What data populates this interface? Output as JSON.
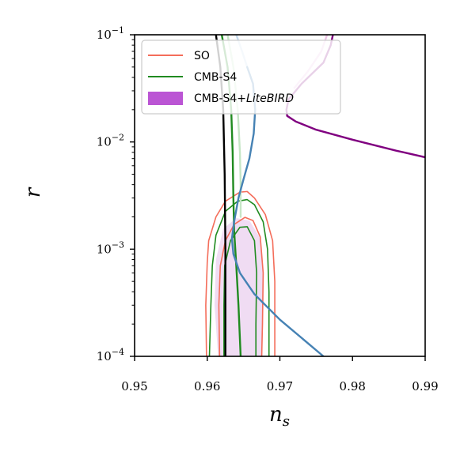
{
  "chart_data": {
    "type": "line",
    "xlabel": "n",
    "xlabel_sub": "s",
    "ylabel": "r",
    "xlim": [
      0.95,
      0.99
    ],
    "ylim": [
      0.0001,
      0.1
    ],
    "yscale": "log",
    "grid": false,
    "legend_position": "top-left",
    "x_ticks": [
      {
        "value": 0.95,
        "label": "0.95"
      },
      {
        "value": 0.96,
        "label": "0.96"
      },
      {
        "value": 0.97,
        "label": "0.97"
      },
      {
        "value": 0.98,
        "label": "0.98"
      },
      {
        "value": 0.99,
        "label": "0.99"
      }
    ],
    "y_ticks": [
      {
        "value": 0.1,
        "base": "10",
        "exp": "−1"
      },
      {
        "value": 0.01,
        "base": "10",
        "exp": "−2"
      },
      {
        "value": 0.001,
        "base": "10",
        "exp": "−3"
      },
      {
        "value": 0.0001,
        "base": "10",
        "exp": "−4"
      }
    ],
    "legend": [
      {
        "label": "SO",
        "color": "#f46d5a",
        "kind": "line"
      },
      {
        "label": "CMB-S4",
        "color": "#208b20",
        "kind": "line"
      },
      {
        "label_main": "CMB-S4+",
        "label_italic": "LiteBIRD",
        "color": "#bb55d4",
        "kind": "patch"
      }
    ],
    "series": [
      {
        "key": "litebird-contour-68",
        "kind": "filled-contour",
        "color": "#dfaeea",
        "points": [
          [
            0.9638,
            0.0001
          ],
          [
            0.9636,
            0.00025
          ],
          [
            0.9637,
            0.0006
          ],
          [
            0.9642,
            0.001
          ],
          [
            0.965,
            0.00122
          ],
          [
            0.9658,
            0.0011
          ],
          [
            0.9662,
            0.0007
          ],
          [
            0.9662,
            0.0003
          ],
          [
            0.966,
            0.0001
          ]
        ]
      },
      {
        "key": "litebird-contour-95",
        "kind": "filled-contour",
        "color": "#f0dcf3",
        "points": [
          [
            0.9615,
            0.0001
          ],
          [
            0.961,
            0.0003
          ],
          [
            0.9612,
            0.0008
          ],
          [
            0.9622,
            0.00155
          ],
          [
            0.964,
            0.00195
          ],
          [
            0.9658,
            0.00185
          ],
          [
            0.9672,
            0.0013
          ],
          [
            0.9678,
            0.0006
          ],
          [
            0.9677,
            0.0002
          ],
          [
            0.9675,
            0.0001
          ]
        ]
      },
      {
        "key": "so-contour-95",
        "color": "#f46d5a",
        "points": [
          [
            0.9599,
            0.0001
          ],
          [
            0.9598,
            0.0003
          ],
          [
            0.96,
            0.00075
          ],
          [
            0.9602,
            0.0012
          ],
          [
            0.9612,
            0.002
          ],
          [
            0.9625,
            0.0028
          ],
          [
            0.9645,
            0.0034
          ],
          [
            0.9655,
            0.00345
          ],
          [
            0.9665,
            0.003
          ],
          [
            0.968,
            0.0021
          ],
          [
            0.969,
            0.0012
          ],
          [
            0.9693,
            0.0005
          ],
          [
            0.9693,
            0.0002
          ],
          [
            0.9693,
            0.0001
          ]
        ]
      },
      {
        "key": "so-contour-68",
        "color": "#f46d5a",
        "points": [
          [
            0.9617,
            0.0001
          ],
          [
            0.9616,
            0.0003
          ],
          [
            0.9618,
            0.0007
          ],
          [
            0.9625,
            0.0012
          ],
          [
            0.9637,
            0.0017
          ],
          [
            0.9652,
            0.00198
          ],
          [
            0.9663,
            0.00185
          ],
          [
            0.9673,
            0.0013
          ],
          [
            0.9677,
            0.0006
          ],
          [
            0.9676,
            0.0002
          ],
          [
            0.9675,
            0.0001
          ]
        ]
      },
      {
        "key": "cmbs4-contour-95",
        "color": "#208b20",
        "points": [
          [
            0.9603,
            0.0001
          ],
          [
            0.9605,
            0.0003
          ],
          [
            0.9607,
            0.0007
          ],
          [
            0.9612,
            0.00135
          ],
          [
            0.9625,
            0.00225
          ],
          [
            0.9642,
            0.0028
          ],
          [
            0.9655,
            0.0029
          ],
          [
            0.9665,
            0.0026
          ],
          [
            0.9677,
            0.0018
          ],
          [
            0.9683,
            0.001
          ],
          [
            0.9685,
            0.0004
          ],
          [
            0.9685,
            0.00015
          ],
          [
            0.9685,
            0.0001
          ]
        ]
      },
      {
        "key": "cmbs4-contour-68",
        "color": "#208b20",
        "points": [
          [
            0.9623,
            0.0001
          ],
          [
            0.9623,
            0.0003
          ],
          [
            0.9624,
            0.0007
          ],
          [
            0.9632,
            0.0012
          ],
          [
            0.9645,
            0.0016
          ],
          [
            0.9655,
            0.00162
          ],
          [
            0.9665,
            0.0012
          ],
          [
            0.9668,
            0.0006
          ],
          [
            0.9667,
            0.0002
          ],
          [
            0.9667,
            0.0001
          ]
        ]
      },
      {
        "key": "black-curve",
        "color": "#000000",
        "points": [
          [
            0.9612,
            0.1
          ],
          [
            0.9618,
            0.05
          ],
          [
            0.9622,
            0.02
          ],
          [
            0.9624,
            0.005
          ],
          [
            0.9625,
            0.001
          ],
          [
            0.9625,
            0.0001
          ]
        ]
      },
      {
        "key": "green-curve",
        "color": "#208b20",
        "points": [
          [
            0.962,
            0.1
          ],
          [
            0.9628,
            0.05
          ],
          [
            0.9633,
            0.02
          ],
          [
            0.9635,
            0.008
          ],
          [
            0.9636,
            0.003
          ],
          [
            0.9637,
            0.0015
          ],
          [
            0.964,
            0.0007
          ],
          [
            0.9643,
            0.0003
          ],
          [
            0.9646,
            0.0001
          ]
        ]
      },
      {
        "key": "light-green-curve",
        "color": "#c6e6c6",
        "points": [
          [
            0.9628,
            0.1
          ],
          [
            0.9636,
            0.05
          ],
          [
            0.9642,
            0.02
          ],
          [
            0.9645,
            0.008
          ],
          [
            0.9646,
            0.004
          ],
          [
            0.9646,
            0.002
          ]
        ]
      },
      {
        "key": "light-blue-curve",
        "color": "#c6dcef",
        "points": [
          [
            0.964,
            0.1
          ],
          [
            0.9648,
            0.07
          ],
          [
            0.9655,
            0.05
          ]
        ]
      },
      {
        "key": "steelblue-curve",
        "color": "#4682b4",
        "points": [
          [
            0.9655,
            0.05
          ],
          [
            0.9663,
            0.035
          ],
          [
            0.9666,
            0.02
          ],
          [
            0.9664,
            0.012
          ],
          [
            0.9658,
            0.007
          ],
          [
            0.965,
            0.0045
          ],
          [
            0.9643,
            0.003
          ],
          [
            0.9637,
            0.0018
          ],
          [
            0.9634,
            0.00125
          ],
          [
            0.9636,
            0.0009
          ],
          [
            0.9645,
            0.0006
          ],
          [
            0.9665,
            0.00038
          ],
          [
            0.97,
            0.00022
          ],
          [
            0.976,
            0.0001
          ]
        ]
      },
      {
        "key": "pink-curve",
        "color": "#eec4e6",
        "points": [
          [
            0.9765,
            0.1
          ],
          [
            0.9757,
            0.07
          ],
          [
            0.9738,
            0.045
          ],
          [
            0.972,
            0.032
          ]
        ]
      },
      {
        "key": "purple-curve",
        "color": "#800080",
        "points": [
          [
            0.9773,
            0.1
          ],
          [
            0.977,
            0.08
          ],
          [
            0.976,
            0.055
          ],
          [
            0.973,
            0.035
          ],
          [
            0.9712,
            0.025
          ],
          [
            0.9709,
            0.02
          ],
          [
            0.971,
            0.0175
          ],
          [
            0.9722,
            0.0155
          ],
          [
            0.975,
            0.013
          ],
          [
            0.98,
            0.0105
          ],
          [
            0.986,
            0.0083
          ],
          [
            0.99,
            0.0072
          ]
        ]
      }
    ]
  }
}
